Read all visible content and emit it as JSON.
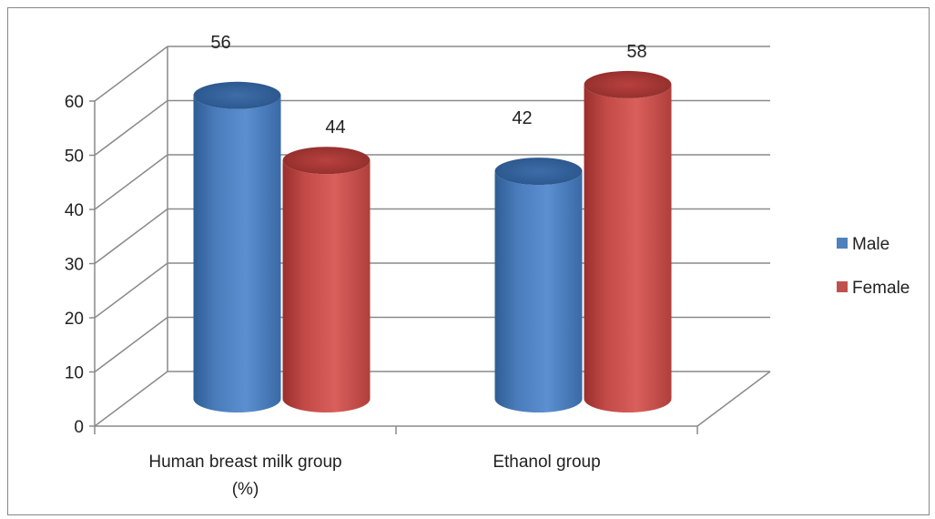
{
  "chart_data": {
    "type": "bar",
    "style": "3d-cylinder",
    "categories": [
      "Human breast milk group (%)",
      "Ethanol group"
    ],
    "category_lines": [
      [
        "Human breast milk group",
        "(%)"
      ],
      [
        "Ethanol group"
      ]
    ],
    "series": [
      {
        "name": "Male",
        "values": [
          56,
          42
        ],
        "color": "#4f81bd"
      },
      {
        "name": "Female",
        "values": [
          44,
          58
        ],
        "color": "#c0504d"
      }
    ],
    "y_ticks": [
      "0",
      "10",
      "20",
      "30",
      "40",
      "50",
      "60"
    ],
    "ylim": [
      0,
      60
    ],
    "grid": true,
    "legend_position": "right"
  }
}
